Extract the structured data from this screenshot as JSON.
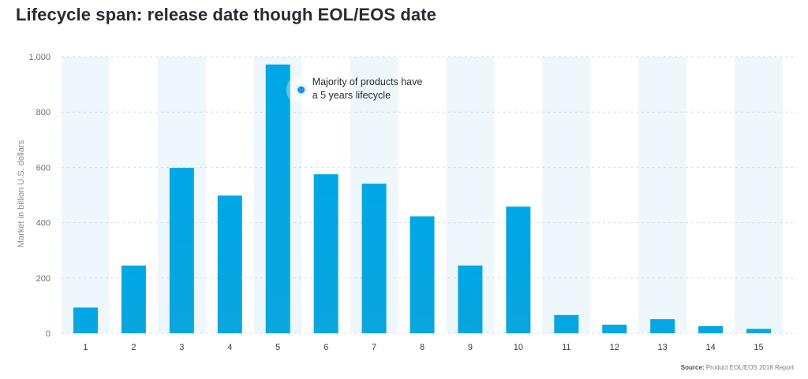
{
  "title": "Lifecycle span: release date though EOL/EOS date",
  "source_label": "Source:",
  "source_text": "Product EOL/EOS 2018 Report",
  "colors": {
    "bar": "#00a7e6",
    "band": "#eef7fc",
    "grid": "#dcdcdc",
    "accent": "#1e90e6"
  },
  "chart_data": {
    "type": "bar",
    "title": "Lifecycle span: release date though EOL/EOS date",
    "xlabel": "",
    "ylabel": "Market in billion U.S. dollars",
    "categories": [
      "1",
      "2",
      "3",
      "4",
      "5",
      "6",
      "7",
      "8",
      "9",
      "10",
      "11",
      "12",
      "13",
      "14",
      "15"
    ],
    "values": [
      93,
      245,
      598,
      498,
      972,
      575,
      541,
      423,
      245,
      458,
      66,
      31,
      51,
      26,
      16
    ],
    "ylim": [
      0,
      1000
    ],
    "yticks": [
      "0",
      "200",
      "400",
      "600",
      "800",
      "1,000"
    ],
    "ytick_values": [
      0,
      200,
      400,
      600,
      800,
      1000
    ],
    "grid": true,
    "annotation": {
      "category": "5",
      "lines": [
        "Majority of products have",
        "a 5 years lifecycle"
      ]
    }
  }
}
